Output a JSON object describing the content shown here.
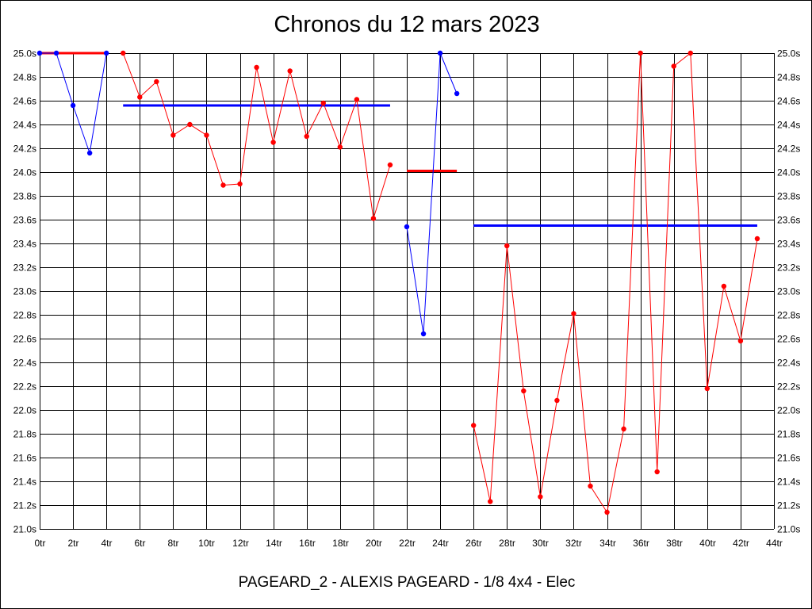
{
  "chart_data": {
    "type": "line",
    "title": "Chronos du 12 mars 2023",
    "footer": "PAGEARD_2 - ALEXIS PAGEARD - 1/8 4x4 - Elec",
    "x_ticks": [
      "0tr",
      "2tr",
      "4tr",
      "6tr",
      "8tr",
      "10tr",
      "12tr",
      "14tr",
      "16tr",
      "18tr",
      "20tr",
      "22tr",
      "24tr",
      "26tr",
      "28tr",
      "30tr",
      "32tr",
      "34tr",
      "36tr",
      "38tr",
      "40tr",
      "42tr",
      "44tr"
    ],
    "y_ticks": [
      "21.0s",
      "21.2s",
      "21.4s",
      "21.6s",
      "21.8s",
      "22.0s",
      "22.2s",
      "22.4s",
      "22.6s",
      "22.8s",
      "23.0s",
      "23.2s",
      "23.4s",
      "23.6s",
      "23.8s",
      "24.0s",
      "24.2s",
      "24.4s",
      "24.6s",
      "24.8s",
      "25.0s"
    ],
    "xlim": [
      0,
      44
    ],
    "ylim": [
      21.0,
      25.0
    ],
    "grid": true,
    "colors": {
      "red": "#ff0000",
      "blue": "#0000ff",
      "grid": "#000000"
    },
    "series": [
      {
        "color": "blue",
        "x": [
          0,
          1,
          2,
          3,
          4
        ],
        "y": [
          25.0,
          25.0,
          24.56,
          24.16,
          25.0
        ]
      },
      {
        "color": "red",
        "x": [
          5,
          6,
          7,
          8,
          9,
          10,
          11,
          12,
          13,
          14,
          15,
          16,
          17,
          18,
          19,
          20,
          21
        ],
        "y": [
          25.0,
          24.63,
          24.76,
          24.31,
          24.4,
          24.31,
          23.89,
          23.9,
          24.88,
          24.25,
          24.85,
          24.3,
          24.58,
          24.21,
          24.61,
          23.61,
          24.06
        ]
      },
      {
        "color": "blue",
        "x": [
          22,
          23,
          24,
          25
        ],
        "y": [
          23.54,
          22.64,
          25.0,
          24.66
        ]
      },
      {
        "color": "red",
        "x": [
          26,
          27,
          28,
          29,
          30,
          31,
          32,
          33,
          34,
          35,
          36,
          37,
          38,
          39,
          40,
          41,
          42,
          43
        ],
        "y": [
          21.87,
          21.23,
          23.38,
          22.16,
          21.27,
          22.08,
          22.81,
          21.36,
          21.14,
          21.84,
          25.0,
          21.48,
          24.89,
          25.0,
          22.18,
          23.04,
          22.58,
          23.44
        ]
      }
    ],
    "averages": [
      {
        "color": "red",
        "x": [
          0,
          4
        ],
        "y": 25.0
      },
      {
        "color": "blue",
        "x": [
          5,
          21
        ],
        "y": 24.56
      },
      {
        "color": "red",
        "x": [
          22,
          25
        ],
        "y": 24.01
      },
      {
        "color": "blue",
        "x": [
          26,
          43
        ],
        "y": 23.55
      }
    ]
  }
}
